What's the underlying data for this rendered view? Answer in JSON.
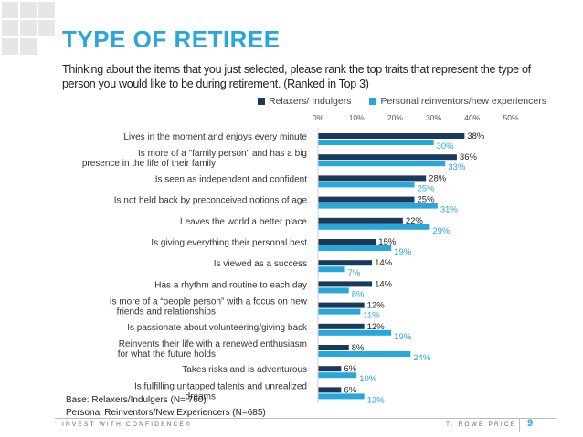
{
  "title": "TYPE OF RETIREE",
  "question": "Thinking about the items that you just selected, please rank the top traits that represent the type of person you would like to be during retirement. (Ranked in Top 3)",
  "colors": {
    "accent": "#2aa7d9",
    "series1": "#1a3a5c",
    "series2": "#2aa7d9"
  },
  "chart_data": {
    "type": "bar",
    "orientation": "horizontal",
    "xlim": [
      0,
      50
    ],
    "ticks": [
      "0%",
      "10%",
      "20%",
      "30%",
      "40%",
      "50%"
    ],
    "tick_values": [
      0,
      10,
      20,
      30,
      40,
      50
    ],
    "grid": true,
    "legend_position": "top",
    "categories": [
      "Lives in the moment and enjoys every minute",
      "Is more of a \"family person\" and has a big presence in the life of their family",
      "Is seen as independent and confident",
      "Is not held back by preconceived notions of age",
      "Leaves the world a better place",
      "Is giving everything their personal best",
      "Is viewed as a success",
      "Has a rhythm and routine to each day",
      "Is more of a “people person” with a focus on new friends and relationships",
      "Is passionate about volunteering/giving back",
      "Reinvents their life with a renewed enthusiasm for what the future holds",
      "Takes risks and is adventurous",
      "Is fulfilling untapped talents and unrealized dreams"
    ],
    "series": [
      {
        "name": "Relaxers/ Indulgers",
        "values": [
          38,
          36,
          28,
          25,
          22,
          15,
          14,
          14,
          12,
          12,
          8,
          6,
          6
        ],
        "labels": [
          "38%",
          "36%",
          "28%",
          "25%",
          "22%",
          "15%",
          "14%",
          "14%",
          "12%",
          "12%",
          "8%",
          "6%",
          "6%"
        ]
      },
      {
        "name": "Personal reinventors/new experiencers",
        "values": [
          30,
          33,
          25,
          31,
          29,
          19,
          7,
          8,
          11,
          19,
          24,
          10,
          12
        ],
        "labels": [
          "30%",
          "33%",
          "25%",
          "31%",
          "29%",
          "19%",
          "7%",
          "8%",
          "11%",
          "19%",
          "24%",
          "10%",
          "12%"
        ]
      }
    ]
  },
  "base": {
    "line1": "Base: Relaxers/Indulgers (N= 760)",
    "line2": "Personal Reinventors/New Experiencers (N=685)"
  },
  "footer": {
    "left": "INVEST WITH CONFIDENCE®",
    "right": "T. ROWE PRICE",
    "page": "9"
  }
}
